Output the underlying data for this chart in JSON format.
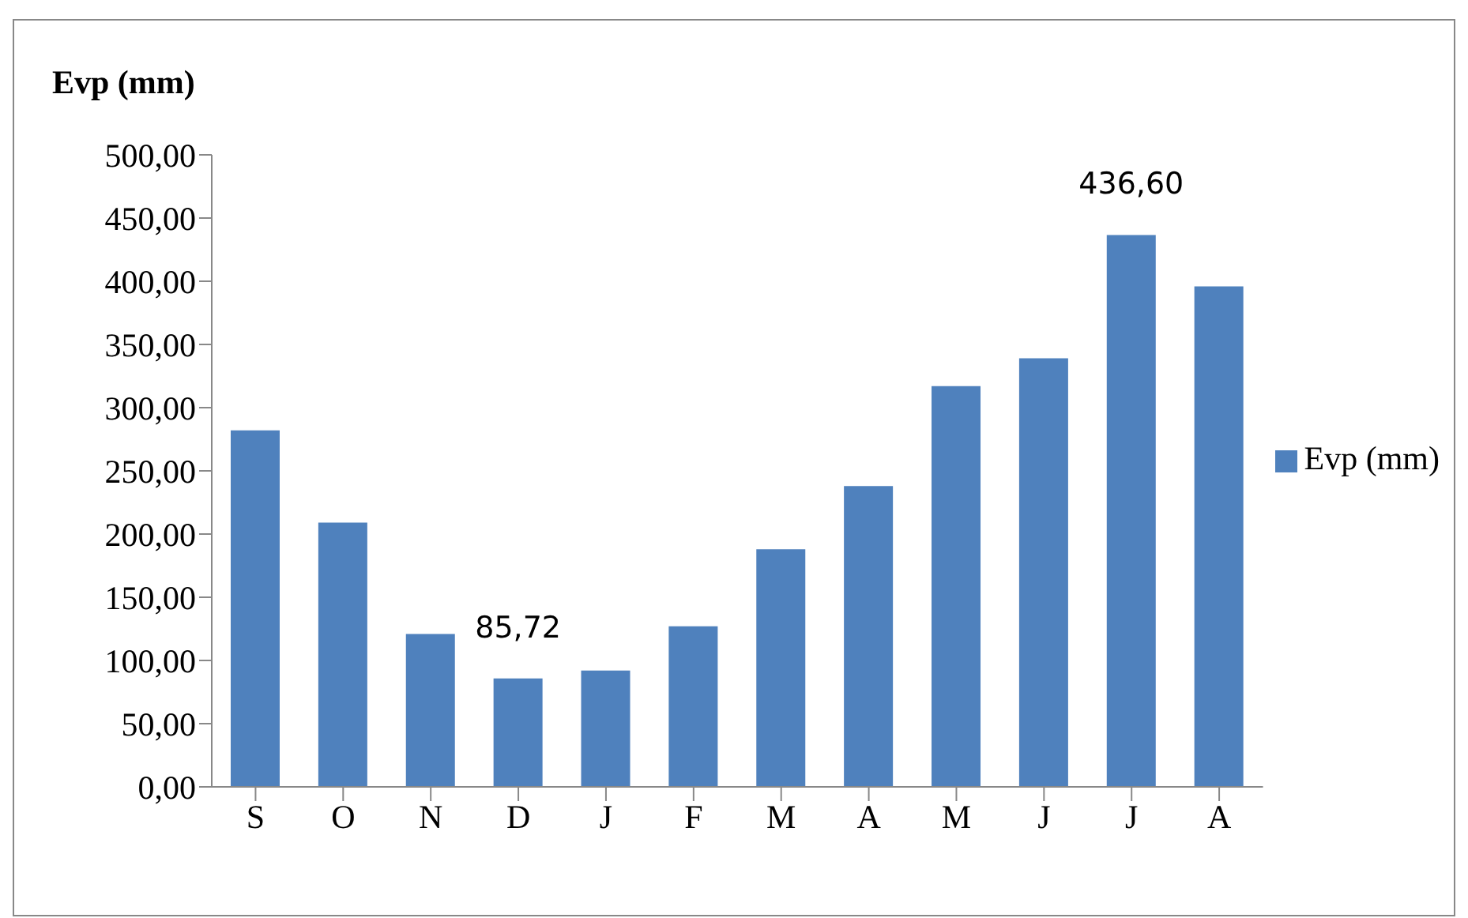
{
  "chart_data": {
    "type": "bar",
    "ylabel": "Evp (mm)",
    "categories": [
      "S",
      "O",
      "N",
      "D",
      "J",
      "F",
      "M",
      "A",
      "M",
      "J",
      "J",
      "A"
    ],
    "series": [
      {
        "name": "Evp (mm)",
        "color": "#4f81bd",
        "values": [
          282,
          209,
          121,
          85.72,
          92,
          127,
          188,
          238,
          317,
          339,
          436.6,
          396
        ],
        "value_labels": [
          null,
          null,
          null,
          "85,72",
          null,
          null,
          null,
          null,
          null,
          null,
          "436,60",
          null
        ]
      }
    ],
    "ylim": [
      0,
      500
    ],
    "yticks": [
      {
        "value": 0,
        "label": "0,00"
      },
      {
        "value": 50,
        "label": "50,00"
      },
      {
        "value": 100,
        "label": "100,00"
      },
      {
        "value": 150,
        "label": "150,00"
      },
      {
        "value": 200,
        "label": "200,00"
      },
      {
        "value": 250,
        "label": "250,00"
      },
      {
        "value": 300,
        "label": "300,00"
      },
      {
        "value": 350,
        "label": "350,00"
      },
      {
        "value": 400,
        "label": "400,00"
      },
      {
        "value": 450,
        "label": "450,00"
      },
      {
        "value": 500,
        "label": "500,00"
      }
    ],
    "legend": "right",
    "grid": false
  }
}
